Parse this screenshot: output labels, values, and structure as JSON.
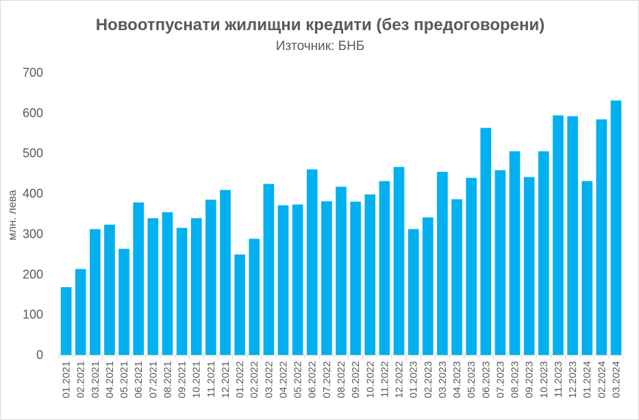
{
  "chart_data": {
    "type": "bar",
    "title": "Новоотпуснати жилищни кредити (без предоговорени)",
    "subtitle": "Източник: БНБ",
    "ylabel": "млн. лева",
    "xlabel": "",
    "ylim": [
      0,
      700
    ],
    "yticks": [
      0,
      100,
      200,
      300,
      400,
      500,
      600,
      700
    ],
    "grid": false,
    "legend": "none",
    "bar_color": "#00b0f0",
    "categories": [
      "01.2021",
      "02.2021",
      "03.2021",
      "04.2021",
      "05.2021",
      "06.2021",
      "07.2021",
      "08.2021",
      "09.2021",
      "10.2021",
      "11.2021",
      "12.2021",
      "01.2022",
      "02.2022",
      "03.2022",
      "04.2022",
      "05.2022",
      "06.2022",
      "07.2022",
      "08.2022",
      "09.2022",
      "10.2022",
      "11.2022",
      "12.2022",
      "01.2023",
      "02.2023",
      "03.2023",
      "04.2023",
      "05.2023",
      "06.2023",
      "07.2023",
      "08.2023",
      "09.2023",
      "10.2023",
      "11.2023",
      "12.2023",
      "01.2024",
      "02.2024",
      "03.2024"
    ],
    "values": [
      168,
      213,
      312,
      323,
      263,
      378,
      339,
      354,
      315,
      339,
      385,
      409,
      249,
      288,
      424,
      371,
      373,
      460,
      381,
      417,
      380,
      398,
      431,
      466,
      312,
      341,
      454,
      386,
      439,
      563,
      458,
      505,
      441,
      505,
      594,
      592,
      431,
      584,
      631
    ]
  }
}
